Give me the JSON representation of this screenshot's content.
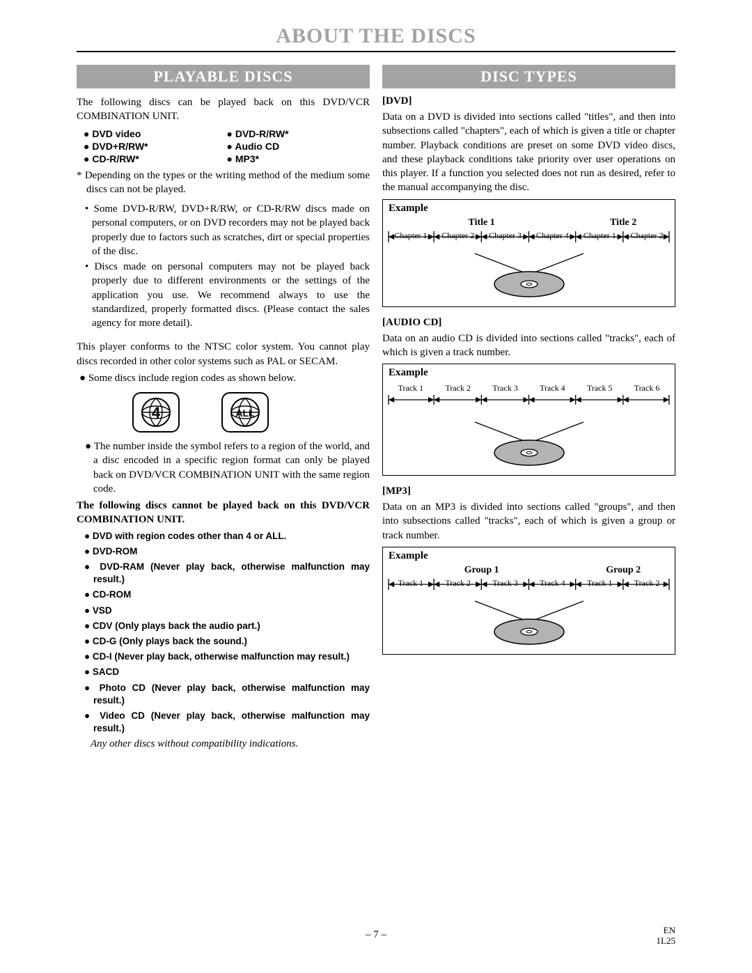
{
  "page": {
    "title": "ABOUT THE DISCS",
    "number": "– 7 –",
    "corner_lang": "EN",
    "corner_code": "1L25"
  },
  "left": {
    "section_title": "PLAYABLE DISCS",
    "intro": "The following discs can be played back on this DVD/VCR COMBINATION UNIT.",
    "disc_list_col1": [
      "DVD video",
      "DVD+R/RW*",
      "CD-R/RW*"
    ],
    "disc_list_col2": [
      "DVD-R/RW*",
      "Audio CD",
      "MP3*"
    ],
    "asterisk_note": "* Depending on the types or the writing method of the medium some discs can not be played.",
    "note1": "Some DVD-R/RW, DVD+R/RW, or CD-R/RW discs made on personal computers, or on DVD recorders may not be played back properly due to factors such as scratches, dirt or special properties of the disc.",
    "note2": "Discs made on personal computers may not be played back properly due to different environments or the settings of the application you use. We recommend always to use the standardized, properly formatted discs. (Please contact the sales agency for more detail).",
    "ntsc": "This player conforms to the NTSC color system. You cannot play discs recorded in other color systems such as PAL or SECAM.",
    "region_bullet": "Some discs include region codes as shown below.",
    "region_label_1": "4",
    "region_label_2": "ALL",
    "region_explain": "The number inside the symbol refers to a region of the world, and a disc encoded in a specific region format can only be played back on DVD/VCR COMBINATION UNIT with the same region code.",
    "cannot_intro": "The following discs cannot be played back on this DVD/VCR COMBINATION UNIT.",
    "cannot_items": [
      "DVD with region codes other than 4 or ALL.",
      "DVD-ROM",
      "DVD-RAM (Never play back, otherwise malfunction may result.)",
      "CD-ROM",
      "VSD",
      "CDV (Only plays back the audio part.)",
      "CD-G (Only plays back the sound.)",
      "CD-I (Never play back, otherwise malfunction may result.)",
      "SACD",
      "Photo CD (Never play back, otherwise malfunction may result.)",
      "Video CD (Never play back, otherwise malfunction may result.)"
    ],
    "other_note": "Any other discs without compatibility indications."
  },
  "right": {
    "section_title": "DISC TYPES",
    "dvd_head": "[DVD]",
    "dvd_text": "Data on a DVD is divided into sections called \"titles\", and then into subsections called \"chapters\", each of which is given a title or chapter number. Playback conditions are preset on some DVD video discs, and these playback conditions take priority over user operations on this player. If a function you selected does not run as desired, refer to the manual accompanying the disc.",
    "example_label": "Example",
    "dvd_titles": [
      "Title 1",
      "Title 2"
    ],
    "dvd_chapters": [
      "Chapter 1",
      "Chapter 2",
      "Chapter 3",
      "Chapter 4",
      "Chapter 1",
      "Chapter 2"
    ],
    "audio_head": "[AUDIO CD]",
    "audio_text": "Data on an audio CD is divided into sections called \"tracks\", each of which is given a track number.",
    "audio_tracks": [
      "Track 1",
      "Track 2",
      "Track 3",
      "Track 4",
      "Track 5",
      "Track 6"
    ],
    "mp3_head": "[MP3]",
    "mp3_text": "Data on an MP3 is divided into sections called \"groups\", and then into subsections called \"tracks\", each of which is given a group or track number.",
    "mp3_groups": [
      "Group 1",
      "Group 2"
    ],
    "mp3_tracks": [
      "Track 1",
      "Track 2",
      "Track 3",
      "Track 4",
      "Track 1",
      "Track 2"
    ]
  },
  "colors": {
    "accent_gray": "#a3a3a3",
    "disc_fill": "#b3b3b3"
  }
}
